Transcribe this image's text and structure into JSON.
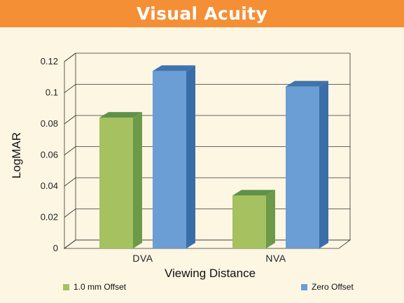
{
  "title": "Visual Acuity",
  "colors": {
    "title_bg": "#f58f35",
    "series_1": "#a6c160",
    "series_1_side": "#6d9a48",
    "series_1_top": "#5f9249",
    "series_2": "#6a9ed4",
    "series_2_side": "#3a6ea8",
    "series_2_top": "#3f74ad"
  },
  "chart_data": {
    "type": "bar",
    "title": "Visual Acuity",
    "xlabel": "Viewing Distance",
    "ylabel": "LogMAR",
    "categories": [
      "DVA",
      "NVA"
    ],
    "series": [
      {
        "name": "1.0 mm Offset",
        "values": [
          0.084,
          0.034
        ]
      },
      {
        "name": "Zero Offset",
        "values": [
          0.114,
          0.104
        ]
      }
    ],
    "ylim": [
      0,
      0.12
    ],
    "yticks": [
      "0",
      "0.02",
      "0.04",
      "0.06",
      "0.08",
      "0.1",
      "0.12"
    ],
    "grid": true,
    "legend": "bottom"
  }
}
